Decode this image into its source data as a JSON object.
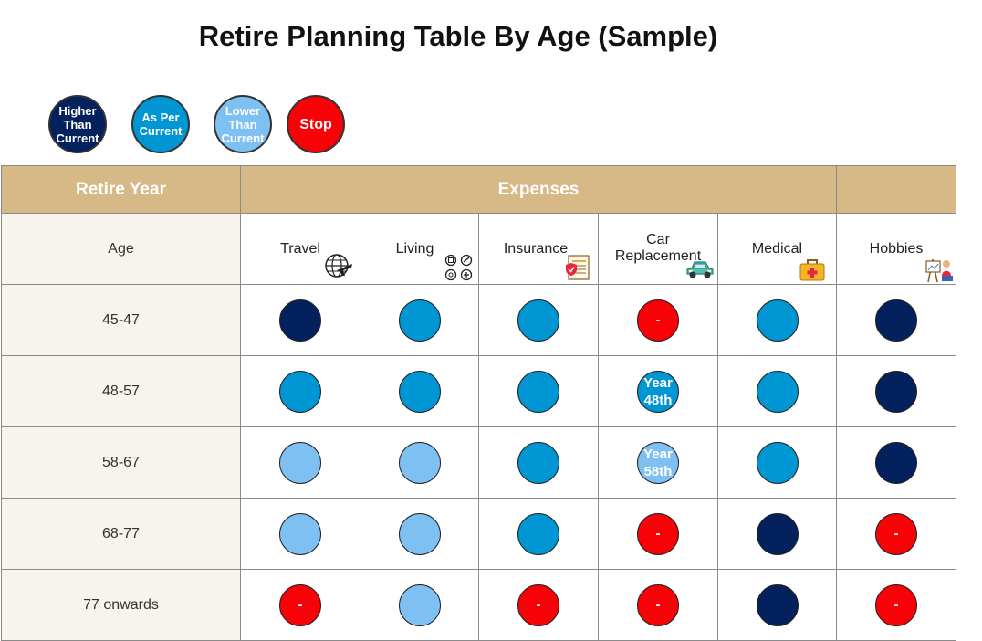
{
  "title": "Retire Planning Table By Age (Sample)",
  "legend": [
    {
      "key": "higher",
      "label": "Higher Than Current",
      "lines": [
        "Higher",
        "Than",
        "Current"
      ],
      "color": "#03215c"
    },
    {
      "key": "asper",
      "label": "As Per Current",
      "lines": [
        "As Per",
        "Current"
      ],
      "color": "#0096d3"
    },
    {
      "key": "lower",
      "label": "Lower Than Current",
      "lines": [
        "Lower",
        "Than",
        "Current"
      ],
      "color": "#7ec0f2"
    },
    {
      "key": "stop",
      "label": "Stop",
      "lines": [
        "Stop"
      ],
      "color": "#f70206"
    }
  ],
  "table": {
    "header": {
      "retire_year": "Retire Year",
      "expenses": "Expenses",
      "last": ""
    },
    "age_label": "Age",
    "columns": [
      {
        "label": "Travel",
        "icon": "globe-plane-icon"
      },
      {
        "label": "Living",
        "icon": "home-services-icon"
      },
      {
        "label": "Insurance",
        "icon": "insurance-document-icon"
      },
      {
        "label": "Car Replacement",
        "lines": [
          "Car",
          "Replacement"
        ],
        "icon": "car-icon"
      },
      {
        "label": "Medical",
        "icon": "first-aid-kit-icon"
      },
      {
        "label": "Hobbies",
        "icon": "painting-easel-icon"
      }
    ],
    "rows": [
      {
        "age": "45-47",
        "cells": [
          {
            "s": "higher"
          },
          {
            "s": "asper"
          },
          {
            "s": "asper"
          },
          {
            "s": "stop",
            "text": "-"
          },
          {
            "s": "asper"
          },
          {
            "s": "higher"
          }
        ]
      },
      {
        "age": "48-57",
        "cells": [
          {
            "s": "asper"
          },
          {
            "s": "asper"
          },
          {
            "s": "asper"
          },
          {
            "s": "asper",
            "text": "Year 48th",
            "lines": [
              "Year",
              "48th"
            ]
          },
          {
            "s": "asper"
          },
          {
            "s": "higher"
          }
        ]
      },
      {
        "age": "58-67",
        "cells": [
          {
            "s": "lower"
          },
          {
            "s": "lower"
          },
          {
            "s": "asper"
          },
          {
            "s": "lower",
            "text": "Year 58th",
            "lines": [
              "Year",
              "58th"
            ]
          },
          {
            "s": "asper"
          },
          {
            "s": "higher"
          }
        ]
      },
      {
        "age": "68-77",
        "cells": [
          {
            "s": "lower"
          },
          {
            "s": "lower"
          },
          {
            "s": "asper"
          },
          {
            "s": "stop",
            "text": "-"
          },
          {
            "s": "higher"
          },
          {
            "s": "stop",
            "text": "-"
          }
        ]
      },
      {
        "age": "77 onwards",
        "cells": [
          {
            "s": "stop",
            "text": "-"
          },
          {
            "s": "lower"
          },
          {
            "s": "stop",
            "text": "-"
          },
          {
            "s": "stop",
            "text": "-"
          },
          {
            "s": "higher"
          },
          {
            "s": "stop",
            "text": "-"
          }
        ]
      }
    ]
  }
}
